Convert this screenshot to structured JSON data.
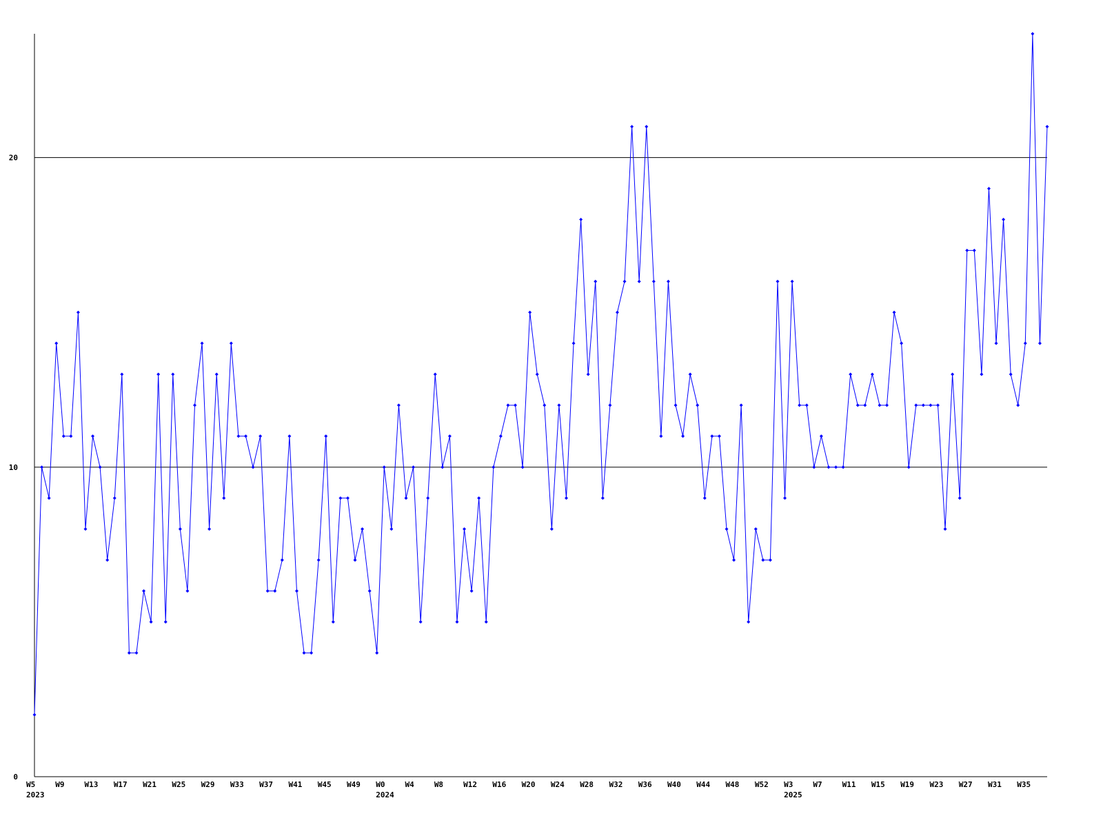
{
  "chart_data": {
    "type": "line",
    "categories": [
      "W5\n2023",
      null,
      null,
      null,
      "W9",
      null,
      null,
      null,
      "W13",
      null,
      null,
      null,
      "W17",
      null,
      null,
      null,
      "W21",
      null,
      null,
      null,
      "W25",
      null,
      null,
      null,
      "W29",
      null,
      null,
      null,
      "W33",
      null,
      null,
      null,
      "W37",
      null,
      null,
      null,
      "W41",
      null,
      null,
      null,
      "W45",
      null,
      null,
      null,
      "W49",
      null,
      null,
      null,
      "W0\n2024",
      null,
      null,
      null,
      "W4",
      null,
      null,
      null,
      "W8",
      null,
      null,
      null,
      "W12",
      null,
      null,
      null,
      "W16",
      null,
      null,
      null,
      "W20",
      null,
      null,
      null,
      "W24",
      null,
      null,
      null,
      "W28",
      null,
      null,
      null,
      "W32",
      null,
      null,
      null,
      "W36",
      null,
      null,
      null,
      "W40",
      null,
      null,
      null,
      "W44",
      null,
      null,
      null,
      "W48",
      null,
      null,
      null,
      "W52",
      null,
      null,
      null,
      "W3\n2025",
      null,
      null,
      null,
      "W7",
      null,
      null,
      null,
      "W11",
      null,
      null,
      null,
      "W15",
      null,
      null,
      null,
      "W19",
      null,
      null,
      null,
      "W23",
      null,
      null,
      null,
      "W27",
      null,
      null,
      null,
      "W31",
      null,
      null,
      null,
      "W35",
      null,
      null,
      null
    ],
    "series": [
      {
        "color": "#0000ff",
        "values": [
          2,
          10,
          9,
          14,
          11,
          11,
          15,
          8,
          11,
          10,
          7,
          9,
          13,
          4,
          4,
          6,
          5,
          13,
          5,
          13,
          8,
          6,
          12,
          14,
          8,
          13,
          9,
          14,
          11,
          11,
          10,
          11,
          6,
          6,
          7,
          11,
          6,
          4,
          4,
          7,
          11,
          5,
          9,
          9,
          7,
          8,
          6,
          4,
          10,
          8,
          12,
          9,
          10,
          5,
          9,
          13,
          10,
          11,
          5,
          8,
          6,
          9,
          5,
          10,
          11,
          12,
          12,
          10,
          15,
          13,
          12,
          8,
          12,
          9,
          14,
          18,
          13,
          16,
          9,
          12,
          15,
          16,
          21,
          16,
          21,
          16,
          11,
          16,
          12,
          11,
          13,
          12,
          9,
          11,
          11,
          8,
          7,
          12,
          5,
          8,
          7,
          7,
          16,
          9,
          16,
          12,
          12,
          10,
          11,
          10,
          10,
          10,
          13,
          12,
          12,
          13,
          12,
          12,
          15,
          14,
          10,
          12,
          12,
          12,
          12,
          8,
          13,
          9,
          17,
          17,
          13,
          19,
          14,
          18,
          13,
          12,
          14,
          24,
          14,
          21
        ]
      }
    ],
    "ylim": [
      0,
      24
    ],
    "yticks": [
      0,
      10,
      20
    ],
    "grid": true
  }
}
